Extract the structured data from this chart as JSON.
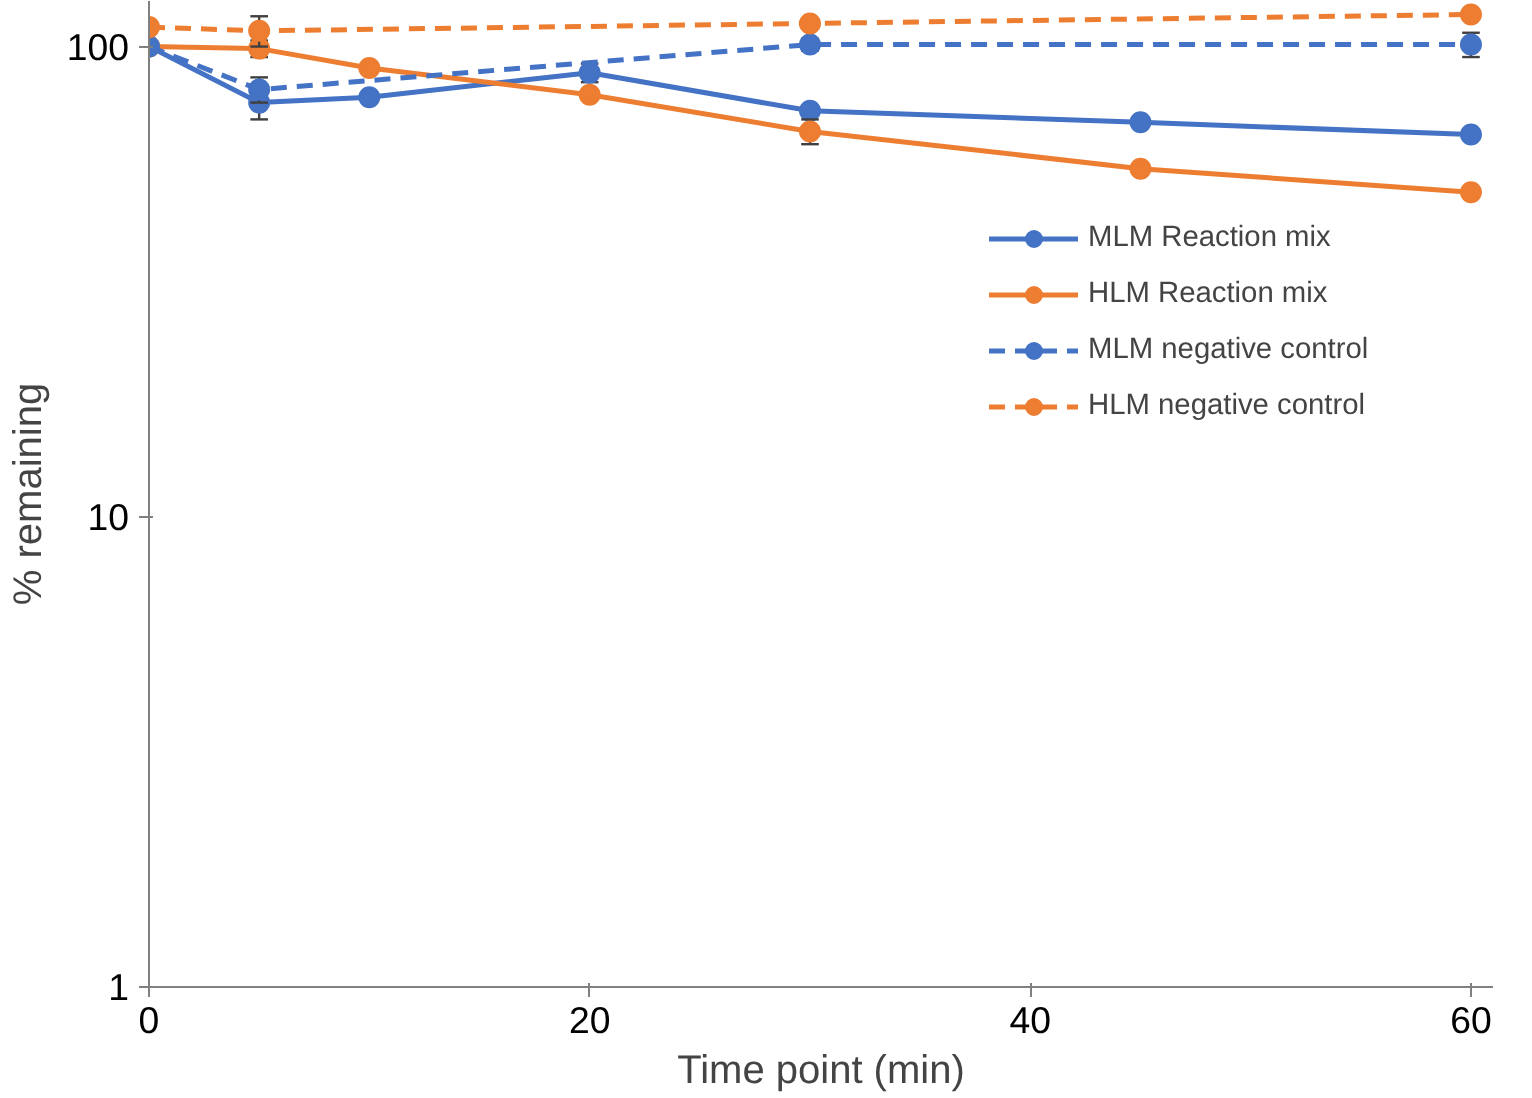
{
  "chart_data": {
    "type": "line",
    "xlabel": "Time point (min)",
    "ylabel": "% remaining",
    "log": "y",
    "xlim": [
      0,
      61
    ],
    "xticks": [
      0,
      20,
      40,
      60
    ],
    "ylim": [
      1,
      125
    ],
    "yticks": [
      1,
      10,
      100
    ],
    "grid": false,
    "legend": "right",
    "marker": "circle",
    "series": [
      {
        "name": "MLM Reaction mix",
        "color": "#4472c4",
        "line_style": "solid",
        "x": [
          0,
          5,
          10,
          20,
          30,
          45,
          60
        ],
        "values": [
          100,
          76,
          78,
          88,
          73,
          69,
          65
        ],
        "errors": [
          null,
          6,
          null,
          4,
          null,
          null,
          null
        ]
      },
      {
        "name": "HLM Reaction mix",
        "color": "#ed7d31",
        "line_style": "solid",
        "x": [
          0,
          5,
          10,
          20,
          30,
          45,
          60
        ],
        "values": [
          100,
          99,
          90,
          79,
          66,
          55,
          49
        ],
        "errors": [
          null,
          4,
          null,
          null,
          4,
          null,
          null
        ]
      },
      {
        "name": "MLM negative control",
        "color": "#4472c4",
        "line_style": "dashed",
        "x": [
          0,
          5,
          30,
          60
        ],
        "values": [
          100,
          81,
          101,
          101
        ],
        "errors": [
          null,
          5,
          3,
          6
        ]
      },
      {
        "name": "HLM negative control",
        "color": "#ed7d31",
        "line_style": "dashed",
        "x": [
          0,
          5,
          30,
          60
        ],
        "values": [
          110,
          108,
          112,
          117
        ],
        "errors": [
          null,
          8,
          null,
          null
        ]
      }
    ]
  }
}
